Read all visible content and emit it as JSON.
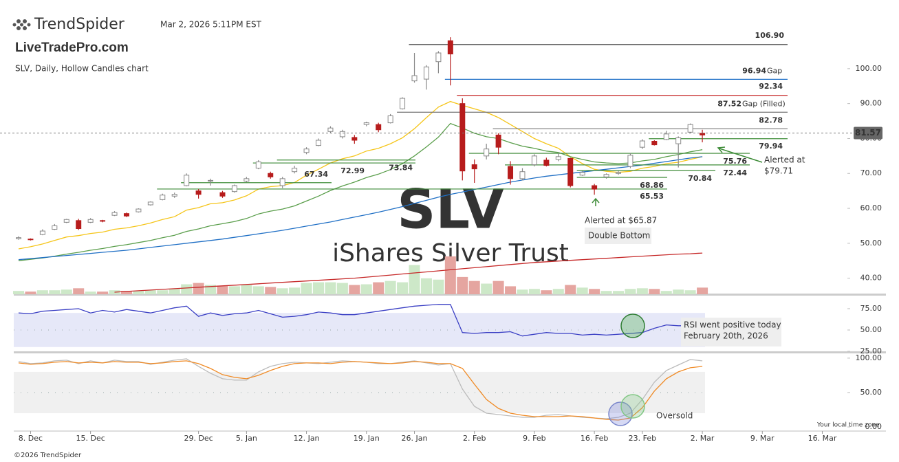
{
  "header": {
    "brand": "TrendSpider",
    "timestamp": "Mar 2, 2026 5:11PM EST",
    "site": "LiveTradePro.com",
    "chart_label": "SLV, Daily, Hollow Candles chart",
    "copyright": "©2026 TrendSpider",
    "timezone_note": "Your local time zone"
  },
  "chart_data": [
    {
      "type": "candlestick",
      "watermark": "SLV",
      "subtitle": "iShares Silver Trust",
      "categories": [
        null,
        "8. Dec",
        null,
        null,
        null,
        null,
        "15. Dec",
        null,
        null,
        null,
        null,
        null,
        null,
        null,
        null,
        "29. Dec",
        null,
        null,
        null,
        "5. Jan",
        null,
        null,
        null,
        null,
        "12. Jan",
        null,
        null,
        null,
        null,
        "19. Jan",
        null,
        null,
        null,
        "26. Jan",
        null,
        null,
        null,
        null,
        "2. Feb",
        null,
        null,
        null,
        null,
        "9. Feb",
        null,
        null,
        null,
        null,
        "16. Feb",
        null,
        null,
        null,
        "23. Feb",
        null,
        null,
        null,
        null,
        "2. Mar",
        null,
        null,
        null,
        null,
        "9. Mar",
        null,
        null,
        null,
        null,
        "16. Mar",
        null,
        null
      ],
      "open": [
        51.3,
        51.2,
        52.5,
        54,
        56,
        56.5,
        56,
        56.5,
        58,
        58.5,
        59,
        61,
        62.5,
        63.5,
        66.5,
        65,
        67.8,
        64.5,
        64.8,
        67.8,
        71.5,
        70,
        66.5,
        70.5,
        76,
        78,
        82,
        80.5,
        80.3,
        84,
        84,
        84.5,
        88.5,
        96.5,
        97,
        102,
        108,
        90,
        72.5,
        75,
        81,
        72,
        68.5,
        72.5,
        73.8,
        74,
        74.3,
        69.5,
        66.5,
        69,
        70,
        72,
        77.5,
        79.2,
        79.7,
        78.5,
        81.8,
        81.5,
        null,
        null,
        null,
        null,
        null,
        null,
        null,
        null,
        null,
        null,
        null,
        null
      ],
      "high": [
        52,
        51.4,
        54,
        55.5,
        57,
        57,
        57.2,
        56.7,
        59.2,
        58.8,
        60,
        62,
        64.2,
        64.5,
        70,
        65.5,
        68.5,
        65,
        66.8,
        69,
        73.8,
        70.5,
        69,
        72.2,
        77.5,
        80,
        83.5,
        82.5,
        81,
        84.8,
        84.5,
        87,
        91.8,
        104.5,
        101,
        105,
        109,
        91.5,
        74,
        78.5,
        81.5,
        73.5,
        71.5,
        75.5,
        74.5,
        76,
        74.5,
        70.7,
        67,
        70,
        70.7,
        75.8,
        79.8,
        79.5,
        82.2,
        80.6,
        84.3,
        82.5,
        null,
        null,
        null,
        null,
        null,
        null,
        null,
        null,
        null,
        null,
        null,
        null
      ],
      "low": [
        51,
        50.8,
        52.3,
        53.8,
        55.8,
        53.8,
        55.8,
        56,
        57.8,
        57.5,
        58.8,
        60.8,
        62.3,
        63,
        66.3,
        62.8,
        66.5,
        63,
        64.5,
        67.5,
        71.2,
        68.5,
        65.8,
        70,
        75.5,
        77.8,
        81.5,
        80,
        78.5,
        83.5,
        81.8,
        84.3,
        88.3,
        96,
        94,
        98.7,
        95.2,
        68,
        67.3,
        74,
        75.5,
        66.8,
        68,
        72,
        72,
        73.5,
        66,
        69.3,
        63.9,
        68.5,
        69.6,
        71.5,
        77,
        78,
        79.5,
        71.7,
        81.5,
        78.9,
        null,
        null,
        null,
        null,
        null,
        null,
        null,
        null,
        null,
        null,
        null,
        null
      ],
      "close": [
        51.6,
        51.0,
        53.5,
        55,
        56.8,
        54.2,
        56.8,
        56.3,
        58.8,
        57.8,
        59.8,
        61.8,
        63.8,
        64,
        69.5,
        64,
        68,
        63.5,
        66.5,
        68.5,
        73.3,
        69,
        68.5,
        71.5,
        77,
        79.5,
        83,
        82,
        79.5,
        84.5,
        82.5,
        86.5,
        91.5,
        98,
        100.5,
        104.5,
        104.2,
        70.7,
        71.3,
        77,
        77.5,
        68.5,
        70.5,
        75,
        72.3,
        74.8,
        66.5,
        70.3,
        65.5,
        69.7,
        70.3,
        75.2,
        79.3,
        78.2,
        81.3,
        80.2,
        84,
        81.0,
        null,
        null,
        null,
        null,
        null,
        null,
        null,
        null,
        null,
        null,
        null,
        null
      ],
      "up_color": "#888888",
      "down_color": "#b71c1c",
      "series": [
        {
          "color": "#f5c518",
          "values": [
            48.4,
            49.0,
            49.8,
            50.8,
            51.8,
            52.2,
            52.8,
            53.2,
            54.0,
            54.4,
            55.0,
            55.8,
            56.8,
            57.6,
            59.5,
            60.2,
            61.3,
            61.6,
            62.4,
            63.6,
            65.5,
            66.2,
            66.5,
            67.4,
            69.5,
            71.2,
            73.0,
            74.2,
            75.0,
            76.4,
            77.2,
            78.5,
            80.2,
            82.8,
            86.0,
            89.0,
            90.6,
            89.5,
            88.5,
            87.5,
            86.0,
            84.0,
            82.0,
            80.0,
            78.5,
            77.2,
            74.8,
            72.8,
            71.2,
            70.6,
            70.3,
            70.6,
            71.5,
            72.0,
            72.8,
            73.2,
            74.0,
            74.8,
            null,
            null,
            null,
            null,
            null,
            null,
            null,
            null,
            null,
            null,
            null,
            null
          ]
        },
        {
          "color": "#5a9e4b",
          "values": [
            45.0,
            45.4,
            45.8,
            46.3,
            46.9,
            47.4,
            48.0,
            48.5,
            49.1,
            49.6,
            50.2,
            50.8,
            51.6,
            52.3,
            53.4,
            54.1,
            55.0,
            55.6,
            56.2,
            57.1,
            58.4,
            59.2,
            59.8,
            60.7,
            62.1,
            63.5,
            65.1,
            66.4,
            67.5,
            68.8,
            69.8,
            71.1,
            72.8,
            75.0,
            77.6,
            80.4,
            84.3,
            83.0,
            81.5,
            80.5,
            80.0,
            78.8,
            77.8,
            77.2,
            76.4,
            76.0,
            74.8,
            74.0,
            73.3,
            73.0,
            72.8,
            73.0,
            73.6,
            74.0,
            74.8,
            75.4,
            76.2,
            76.8,
            null,
            null,
            null,
            null,
            null,
            null,
            null,
            null,
            null,
            null,
            null,
            null
          ]
        },
        {
          "color": "#1f6fc5",
          "values": [
            45.3,
            45.6,
            45.9,
            46.2,
            46.5,
            46.8,
            47.1,
            47.4,
            47.7,
            48.0,
            48.4,
            48.8,
            49.2,
            49.6,
            50.0,
            50.4,
            50.8,
            51.2,
            51.7,
            52.2,
            52.7,
            53.2,
            53.7,
            54.3,
            54.9,
            55.5,
            56.1,
            56.8,
            57.5,
            58.2,
            58.9,
            59.7,
            60.5,
            61.4,
            62.3,
            63.2,
            64.0,
            64.7,
            65.4,
            66.1,
            66.8,
            67.5,
            68.1,
            68.7,
            69.2,
            69.6,
            70.0,
            70.4,
            70.8,
            71.2,
            71.6,
            72.0,
            72.4,
            72.9,
            73.4,
            73.9,
            74.4,
            74.8,
            null,
            null,
            null,
            null,
            null,
            null,
            null,
            null,
            null,
            null,
            null,
            null
          ]
        },
        {
          "color": "#c62828",
          "values": [
            null,
            null,
            null,
            null,
            null,
            null,
            null,
            null,
            36.0,
            36.2,
            36.4,
            36.6,
            36.8,
            37.0,
            37.2,
            37.4,
            37.6,
            37.8,
            38.0,
            38.2,
            38.4,
            38.6,
            38.8,
            39.0,
            39.2,
            39.4,
            39.6,
            39.8,
            40.0,
            40.3,
            40.6,
            40.9,
            41.2,
            41.5,
            41.8,
            42.1,
            42.4,
            42.7,
            43.0,
            43.3,
            43.6,
            43.9,
            44.2,
            44.5,
            44.7,
            44.9,
            45.1,
            45.3,
            45.5,
            45.7,
            45.9,
            46.1,
            46.3,
            46.5,
            46.7,
            46.9,
            47.0,
            47.2,
            null,
            null,
            null,
            null,
            null,
            null,
            null,
            null,
            null,
            null,
            null,
            null
          ]
        }
      ],
      "levels": [
        {
          "value": 106.9,
          "label": "106.90",
          "color": "#333333"
        },
        {
          "value": 96.94,
          "label": "96.94",
          "suffix": "Gap",
          "color": "#1e6fc8"
        },
        {
          "value": 92.34,
          "label": "92.34",
          "color": "#c62828"
        },
        {
          "value": 87.52,
          "label": "87.52",
          "suffix": "Gap (Filled)",
          "color": "#777777"
        },
        {
          "value": 82.78,
          "label": "82.78",
          "color": "#777777"
        },
        {
          "value": 79.94,
          "label": "79.94",
          "color": "#3d8b37"
        },
        {
          "value": 75.76,
          "label": "75.76",
          "color": "#3d8b37"
        },
        {
          "value": 72.44,
          "label": "72.44",
          "color": "#3d8b37"
        },
        {
          "value": 70.84,
          "label": "70.84",
          "color": "#3d8b37"
        },
        {
          "value": 68.86,
          "label": "68.86",
          "color": "#3d8b37"
        },
        {
          "value": 65.53,
          "label": "65.53",
          "color": "#3d8b37"
        },
        {
          "value": 67.34,
          "label": "67.34",
          "color": "#3d8b37"
        },
        {
          "value": 72.99,
          "label": "72.99",
          "color": "#3d8b37"
        },
        {
          "value": 73.84,
          "label": "73.84",
          "color": "#3d8b37"
        }
      ],
      "last_price": {
        "value": 81.57,
        "label": "81.57"
      },
      "annotations": [
        "Alerted at $65.87",
        "Double Bottom",
        "Alerted at",
        "$79.71"
      ],
      "ylim": [
        35.4,
        110.8
      ],
      "yticks": [
        {
          "value": 40,
          "label": "40.00"
        },
        {
          "value": 50,
          "label": "50.00"
        },
        {
          "value": 60,
          "label": "60.00"
        },
        {
          "value": 70,
          "label": "70.00"
        },
        {
          "value": 80,
          "label": "80.00"
        },
        {
          "value": 90,
          "label": "90.00"
        },
        {
          "value": 100,
          "label": "100.00"
        }
      ]
    },
    {
      "type": "bar",
      "up_color": "#cde8c8",
      "down_color": "#e5a5a0",
      "ylim": [
        0,
        60
      ],
      "values": [
        5,
        4,
        6,
        6,
        7,
        9,
        4,
        4,
        6,
        5,
        5,
        6,
        6,
        8,
        15,
        17,
        14,
        13,
        12,
        14,
        12,
        11,
        9,
        10,
        17,
        18,
        18,
        17,
        14,
        15,
        18,
        20,
        18,
        44,
        24,
        22,
        57,
        26,
        20,
        16,
        20,
        12,
        7,
        8,
        6,
        8,
        14,
        10,
        8,
        5,
        5,
        8,
        9,
        8,
        5,
        7,
        6,
        10,
        null,
        null,
        null,
        null,
        null,
        null,
        null,
        null,
        null,
        null,
        null,
        null
      ]
    },
    {
      "type": "line",
      "ylim": [
        24.2,
        90.3
      ],
      "band": [
        30,
        70
      ],
      "band_color": "#e6e8f8",
      "yticks": [
        {
          "value": 25,
          "label": "25.00"
        },
        {
          "value": 50,
          "label": "50.00"
        },
        {
          "value": 75,
          "label": "75.00"
        }
      ],
      "series": [
        {
          "color": "#3a3fc4",
          "values": [
            70,
            69,
            72,
            73,
            74,
            75,
            70,
            73,
            71,
            74,
            72,
            70,
            73,
            76,
            78,
            66,
            70,
            67,
            69,
            70,
            73,
            69,
            65,
            66,
            68,
            71,
            70,
            68,
            68,
            70,
            72,
            74,
            76,
            78,
            79,
            80,
            80,
            47,
            46,
            47,
            47,
            48,
            43,
            45,
            47,
            46,
            46,
            44,
            45,
            44,
            45,
            46,
            47,
            52,
            56,
            55,
            55,
            55,
            null,
            null,
            null,
            null,
            null,
            null,
            null,
            null,
            null,
            null,
            null,
            null
          ]
        }
      ],
      "annotations": [
        "RSI went positive today",
        "February 20th, 2026"
      ]
    },
    {
      "type": "line",
      "ylim": [
        -2,
        105.9
      ],
      "band": [
        20,
        80
      ],
      "band_color": "#f0f0f0",
      "yticks": [
        {
          "value": 0,
          "label": "0.00"
        },
        {
          "value": 50,
          "label": "50.00"
        },
        {
          "value": 100,
          "label": "100.00"
        }
      ],
      "series": [
        {
          "color": "#bbbbbb",
          "values": [
            95,
            92,
            93,
            96,
            97,
            92,
            96,
            93,
            97,
            95,
            95,
            91,
            94,
            97,
            99,
            88,
            78,
            70,
            68,
            68,
            80,
            88,
            92,
            94,
            93,
            92,
            94,
            96,
            95,
            94,
            92,
            92,
            94,
            96,
            93,
            90,
            92,
            55,
            30,
            20,
            18,
            16,
            14,
            14,
            17,
            18,
            16,
            14,
            13,
            12,
            14,
            20,
            40,
            65,
            82,
            90,
            98,
            96,
            null,
            null,
            null,
            null,
            null,
            null,
            null,
            null,
            null,
            null,
            null,
            null
          ]
        },
        {
          "color": "#f08a24",
          "values": [
            93,
            91,
            92,
            94,
            95,
            93,
            94,
            93,
            95,
            94,
            94,
            92,
            93,
            95,
            96,
            92,
            85,
            76,
            72,
            70,
            75,
            82,
            88,
            92,
            93,
            93,
            92,
            94,
            95,
            94,
            93,
            92,
            93,
            95,
            94,
            92,
            92,
            85,
            62,
            40,
            27,
            20,
            17,
            15,
            15,
            15,
            16,
            15,
            13,
            11,
            10,
            13,
            28,
            52,
            70,
            80,
            86,
            88,
            null,
            null,
            null,
            null,
            null,
            null,
            null,
            null,
            null,
            null,
            null,
            null
          ]
        }
      ],
      "annotations": [
        "Oversold"
      ]
    }
  ]
}
